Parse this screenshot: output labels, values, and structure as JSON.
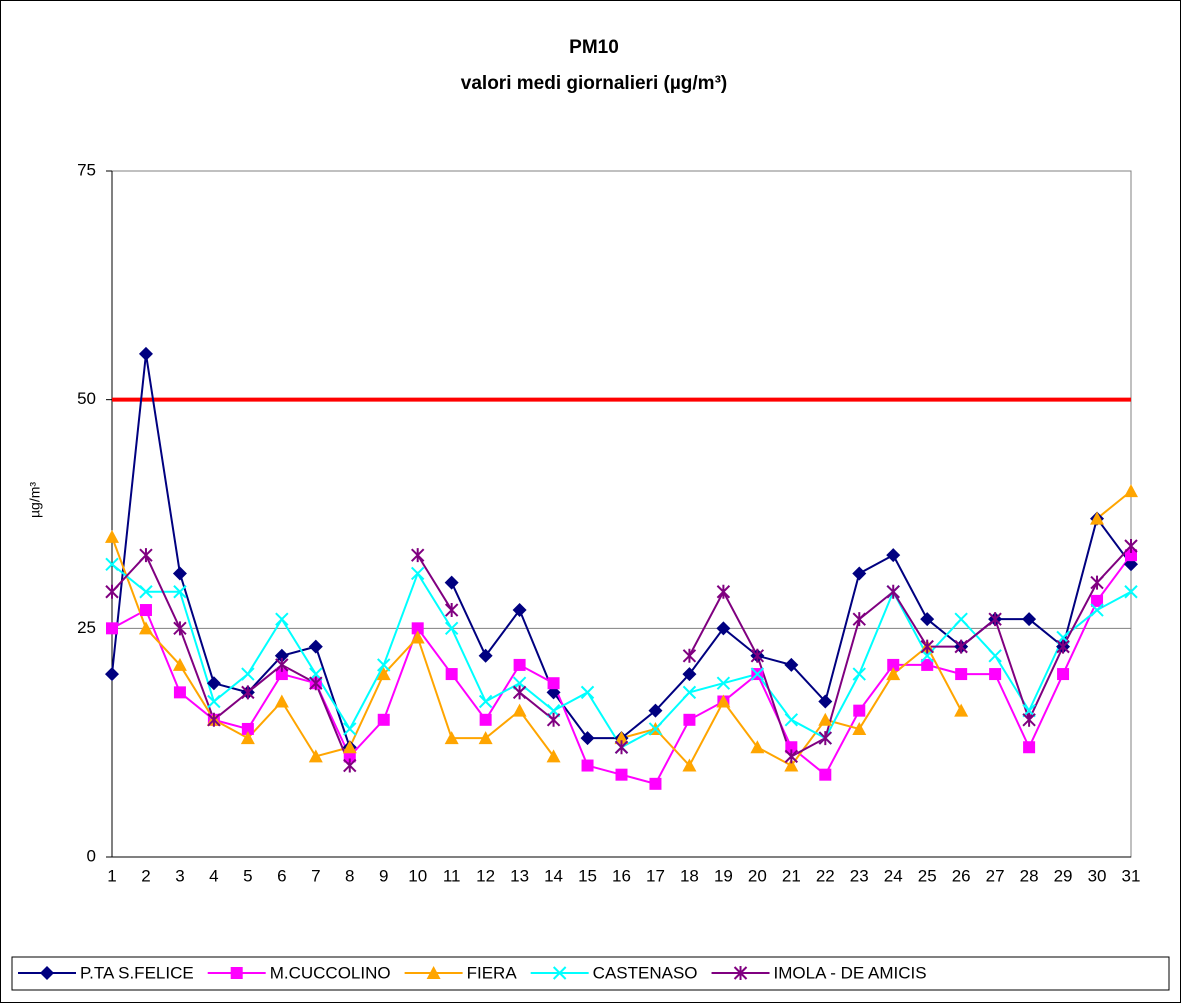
{
  "chart_data": {
    "type": "line",
    "title": "PM10",
    "subtitle": "valori medi giornalieri (µg/m³)",
    "y_label": "µg/m³",
    "categories": [
      1,
      2,
      3,
      4,
      5,
      6,
      7,
      8,
      9,
      10,
      11,
      12,
      13,
      14,
      15,
      16,
      17,
      18,
      19,
      20,
      21,
      22,
      23,
      24,
      25,
      26,
      27,
      28,
      29,
      30,
      31
    ],
    "ylim": [
      0,
      75
    ],
    "yticks": [
      0,
      25,
      50,
      75
    ],
    "grid": true,
    "legend": "bottom",
    "reference_line": {
      "value": 50,
      "color": "#ff0000"
    },
    "series": [
      {
        "name": "P.TA S.FELICE",
        "color": "#000080",
        "marker": "diamond",
        "values": [
          20,
          55,
          31,
          19,
          18,
          22,
          23,
          12,
          null,
          null,
          30,
          22,
          27,
          18,
          13,
          13,
          16,
          20,
          25,
          22,
          21,
          17,
          31,
          33,
          26,
          23,
          26,
          26,
          23,
          37,
          32
        ]
      },
      {
        "name": "M.CUCCOLINO",
        "color": "#ff00ff",
        "marker": "square",
        "values": [
          25,
          27,
          18,
          15,
          14,
          20,
          19,
          11,
          15,
          25,
          20,
          15,
          21,
          19,
          10,
          9,
          8,
          15,
          17,
          20,
          12,
          9,
          16,
          21,
          21,
          20,
          20,
          12,
          20,
          28,
          33
        ]
      },
      {
        "name": "FIERA",
        "color": "#ffa500",
        "marker": "triangle",
        "values": [
          35,
          25,
          21,
          15,
          13,
          17,
          11,
          12,
          20,
          24,
          13,
          13,
          16,
          11,
          null,
          13,
          14,
          10,
          17,
          12,
          10,
          15,
          14,
          20,
          23,
          16,
          null,
          null,
          null,
          37,
          40
        ]
      },
      {
        "name": "CASTENASO",
        "color": "#00ffff",
        "marker": "x",
        "values": [
          32,
          29,
          29,
          17,
          20,
          26,
          20,
          14,
          21,
          31,
          25,
          17,
          19,
          16,
          18,
          12,
          14,
          18,
          19,
          20,
          15,
          13,
          20,
          29,
          22,
          26,
          22,
          16,
          24,
          27,
          29
        ]
      },
      {
        "name": "IMOLA - DE AMICIS",
        "color": "#800080",
        "marker": "star",
        "values": [
          29,
          33,
          25,
          15,
          18,
          21,
          19,
          10,
          null,
          33,
          27,
          null,
          18,
          15,
          null,
          12,
          null,
          22,
          29,
          22,
          11,
          13,
          26,
          29,
          23,
          23,
          26,
          15,
          23,
          30,
          34
        ]
      }
    ]
  }
}
